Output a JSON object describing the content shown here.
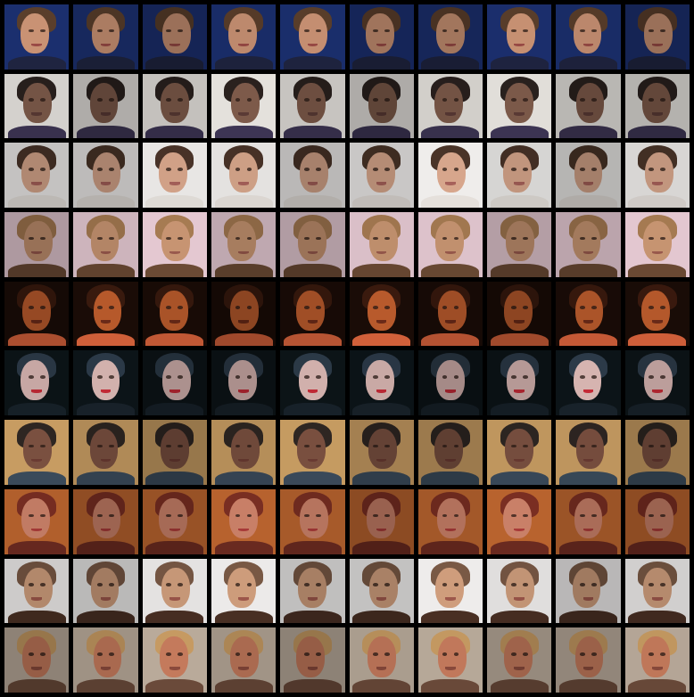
{
  "grid": {
    "rows": 10,
    "columns": 10
  },
  "rows": [
    {
      "bg": "#1b2f6e",
      "skin": "#c99274",
      "hair": "#5a3e2b",
      "mouth": "#9a4a45",
      "clothes": "#1f2440"
    },
    {
      "bg": "#e4e1dc",
      "skin": "#7d5a4a",
      "hair": "#2a211e",
      "mouth": "#5a3a35",
      "clothes": "#3d3554"
    },
    {
      "bg": "#f0eeec",
      "skin": "#d8a78c",
      "hair": "#4a3428",
      "mouth": "#a8615a",
      "clothes": "#e6e1dc"
    },
    {
      "bg": "#e5c9d2",
      "skin": "#c89572",
      "hair": "#a77b52",
      "mouth": "#9a5a4d",
      "clothes": "#6b4a34"
    },
    {
      "bg": "#1a0c07",
      "skin": "#b85a2c",
      "hair": "#3a1a0e",
      "mouth": "#6a2a18",
      "clothes": "#d2603a"
    },
    {
      "bg": "#0c1418",
      "skin": "#d6b4b0",
      "hair": "#2c3a48",
      "mouth": "#c42a36",
      "clothes": "#18222a"
    },
    {
      "bg": "#c79c62",
      "skin": "#7a5040",
      "hair": "#2e2622",
      "mouth": "#6a3a32",
      "clothes": "#3a4a5a"
    },
    {
      "bg": "#b8632e",
      "skin": "#c98068",
      "hair": "#7a2e22",
      "mouth": "#a83a38",
      "clothes": "#6a2a20"
    },
    {
      "bg": "#f2f0ef",
      "skin": "#d2a07e",
      "hair": "#7b5a46",
      "mouth": "#a0584c",
      "clothes": "#4a3024"
    },
    {
      "bg": "#b9aa9a",
      "skin": "#c47a5c",
      "hair": "#c69a62",
      "mouth": "#8a4a3c",
      "clothes": "#6a4a3a"
    }
  ]
}
